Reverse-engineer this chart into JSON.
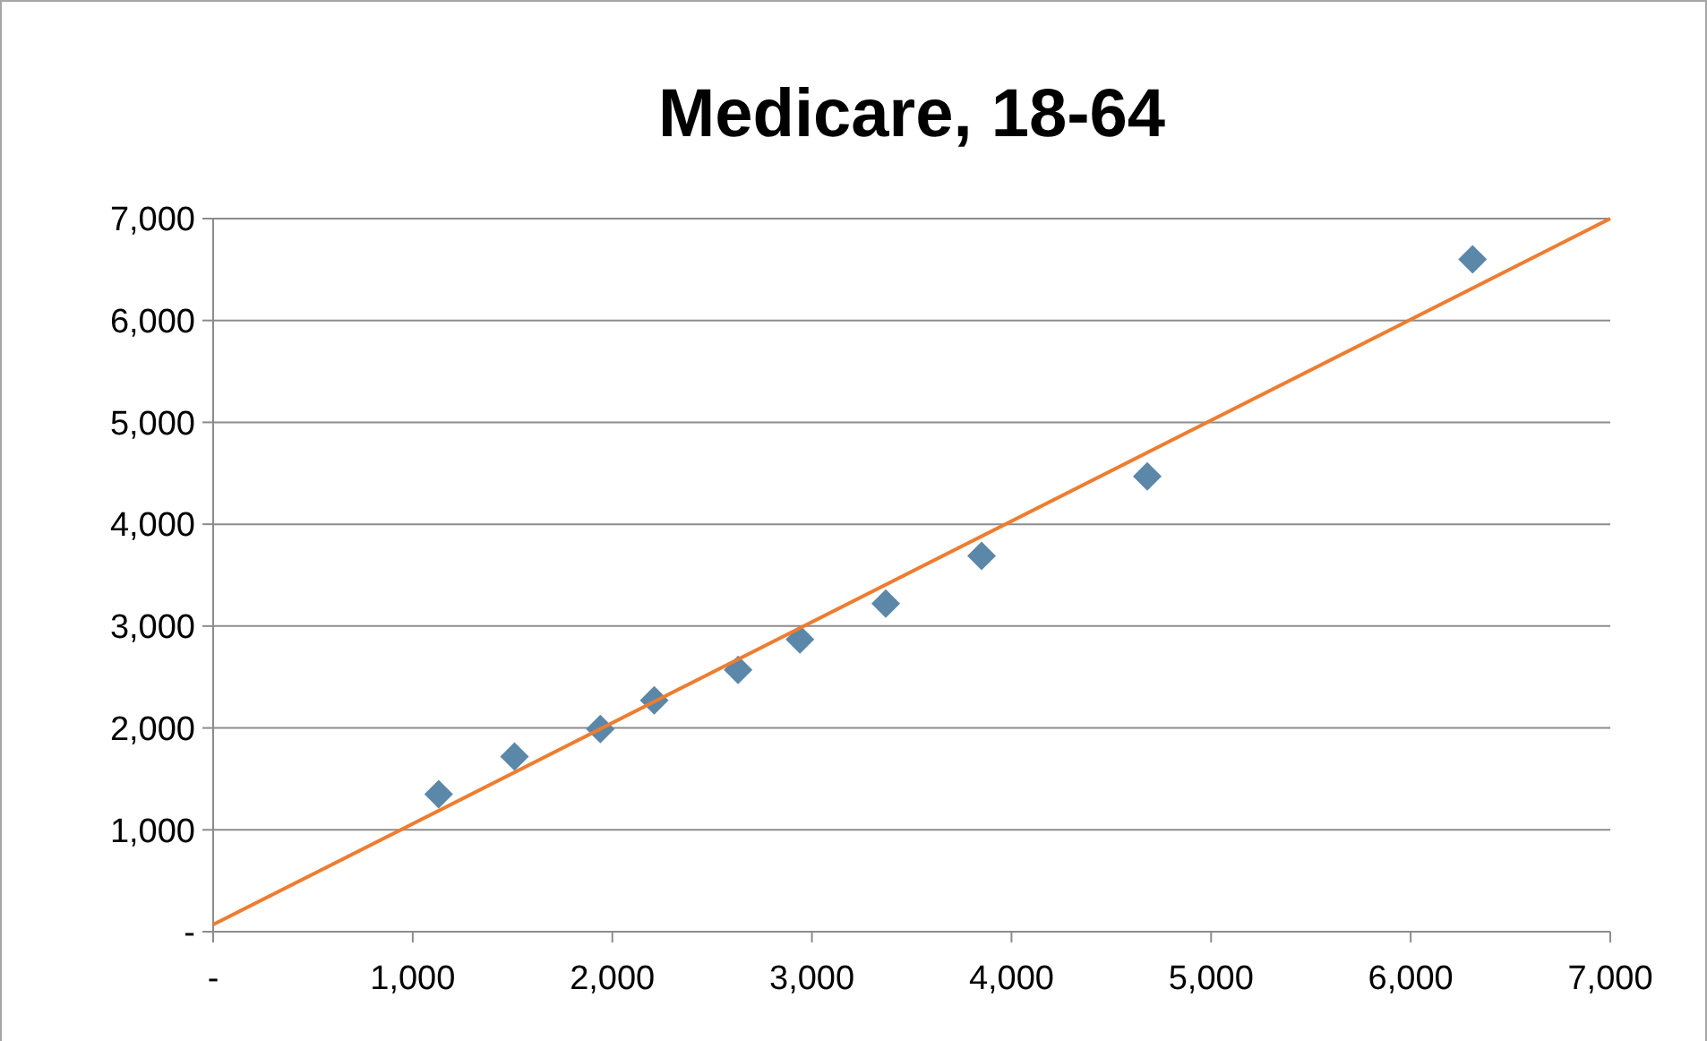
{
  "chart_data": {
    "type": "scatter",
    "title": "Medicare, 18-64",
    "grid": "y",
    "xlim": [
      0,
      7000
    ],
    "ylim": [
      0,
      7000
    ],
    "xticks": [
      {
        "value": 0,
        "label": "-"
      },
      {
        "value": 1000,
        "label": "1,000"
      },
      {
        "value": 2000,
        "label": "2,000"
      },
      {
        "value": 3000,
        "label": "3,000"
      },
      {
        "value": 4000,
        "label": "4,000"
      },
      {
        "value": 5000,
        "label": "5,000"
      },
      {
        "value": 6000,
        "label": "6,000"
      },
      {
        "value": 7000,
        "label": "7,000"
      }
    ],
    "yticks": [
      {
        "value": 0,
        "label": "-"
      },
      {
        "value": 1000,
        "label": "1,000"
      },
      {
        "value": 2000,
        "label": "2,000"
      },
      {
        "value": 3000,
        "label": "3,000"
      },
      {
        "value": 4000,
        "label": "4,000"
      },
      {
        "value": 5000,
        "label": "5,000"
      },
      {
        "value": 6000,
        "label": "6,000"
      },
      {
        "value": 7000,
        "label": "7,000"
      }
    ],
    "series": [
      {
        "marker": "diamond",
        "color": "#5b87a8",
        "x": [
          1130,
          1510,
          1940,
          2210,
          2630,
          2940,
          3370,
          3850,
          4680,
          6310
        ],
        "values": [
          1350,
          1720,
          1990,
          2270,
          2570,
          2870,
          3220,
          3690,
          4470,
          6600
        ]
      },
      {
        "type": "line",
        "color": "#ed7d31",
        "x": [
          0,
          7000
        ],
        "values": [
          70,
          7000
        ]
      }
    ]
  }
}
